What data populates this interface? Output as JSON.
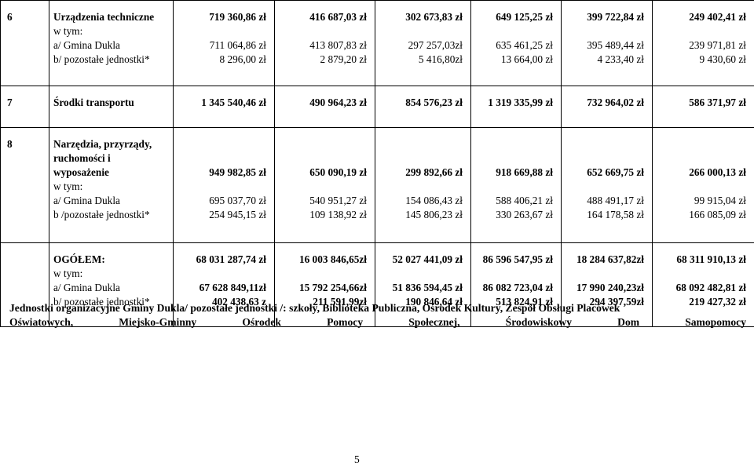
{
  "sections": {
    "s6": {
      "no": "6",
      "labels": [
        "Urządzenia techniczne",
        "w tym:",
        "a/ Gmina Dukla",
        "b/ pozostałe jednostki*"
      ],
      "cols": [
        [
          "719 360,86 zł",
          "",
          "711 064,86 zł",
          "8 296,00 zł"
        ],
        [
          "416 687,03 zł",
          "",
          "413 807,83 zł",
          "2 879,20 zł"
        ],
        [
          "302 673,83 zł",
          "",
          "297 257,03zł",
          "5 416,80zł"
        ],
        [
          "649 125,25 zł",
          "",
          "635 461,25 zł",
          "13 664,00 zł"
        ],
        [
          "399 722,84 zł",
          "",
          "395 489,44 zł",
          "4 233,40 zł"
        ],
        [
          "249 402,41 zł",
          "",
          "239 971,81 zł",
          "9 430,60 zł"
        ]
      ]
    },
    "s7": {
      "no": "7",
      "label": "Środki transportu",
      "cols": [
        "1 345 540,46 zł",
        "490 964,23 zł",
        "854 576,23 zł",
        "1 319 335,99 zł",
        "732 964,02 zł",
        "586 371,97 zł"
      ]
    },
    "s8": {
      "no": "8",
      "labels": [
        "Narzędzia, przyrządy,",
        "ruchomości i",
        "wyposażenie",
        "w tym:",
        "a/ Gmina  Dukla",
        "b /pozostałe jednostki*"
      ],
      "cols": [
        [
          "949 982,85 zł",
          "",
          "695 037,70 zł",
          "254 945,15 zł"
        ],
        [
          "650 090,19 zł",
          "",
          "540 951,27 zł",
          "109 138,92 zł"
        ],
        [
          "299 892,66 zł",
          "",
          "154 086,43 zł",
          "145 806,23 zł"
        ],
        [
          "918 669,88 zł",
          "",
          "588 406,21 zł",
          "330 263,67 zł"
        ],
        [
          "652 669,75 zł",
          "",
          "488 491,17 zł",
          "164 178,58 zł"
        ],
        [
          "266 000,13 zł",
          "",
          "99 915,04 zł",
          "166 085,09 zł"
        ]
      ]
    },
    "total": {
      "labels": [
        "OGÓŁEM:",
        "w tym:",
        "a/ Gmina  Dukla",
        "b/ pozostałe jednostki*"
      ],
      "cols": [
        [
          "68 031 287,74 zł",
          "",
          "67  628 849,11zł",
          "402 438,63 z"
        ],
        [
          "16 003 846,65zł",
          "",
          "15 792 254,66zł",
          "211 591,99zł"
        ],
        [
          "52 027 441,09 zł",
          "",
          "51 836 594,45 zł",
          "190 846,64 zł"
        ],
        [
          "86 596 547,95 zł",
          "",
          "86 082 723,04 zł",
          "513 824,91 zł"
        ],
        [
          "18 284 637,82zł",
          "",
          "17 990 240,23zł",
          "294 397,59zł"
        ],
        [
          "68 311 910,13 zł",
          "",
          "68 092 482,81 zł",
          "219 427,32 zł"
        ]
      ]
    }
  },
  "footnote": {
    "line1": "Jednostki organizacyjne Gminy Dukla/ pozostałe jednostki /: szkoły,  Biblioteka Publiczna, Ośrodek Kultury, Zespół Obsługi Placówek",
    "line2_words": [
      "Oświatowych,",
      "Miejsko-Gminny",
      "Ośrodek",
      "Pomocy",
      "Społecznej,",
      "Środowiskowy",
      "Dom",
      "Samopomocy"
    ]
  },
  "page_number": "5"
}
